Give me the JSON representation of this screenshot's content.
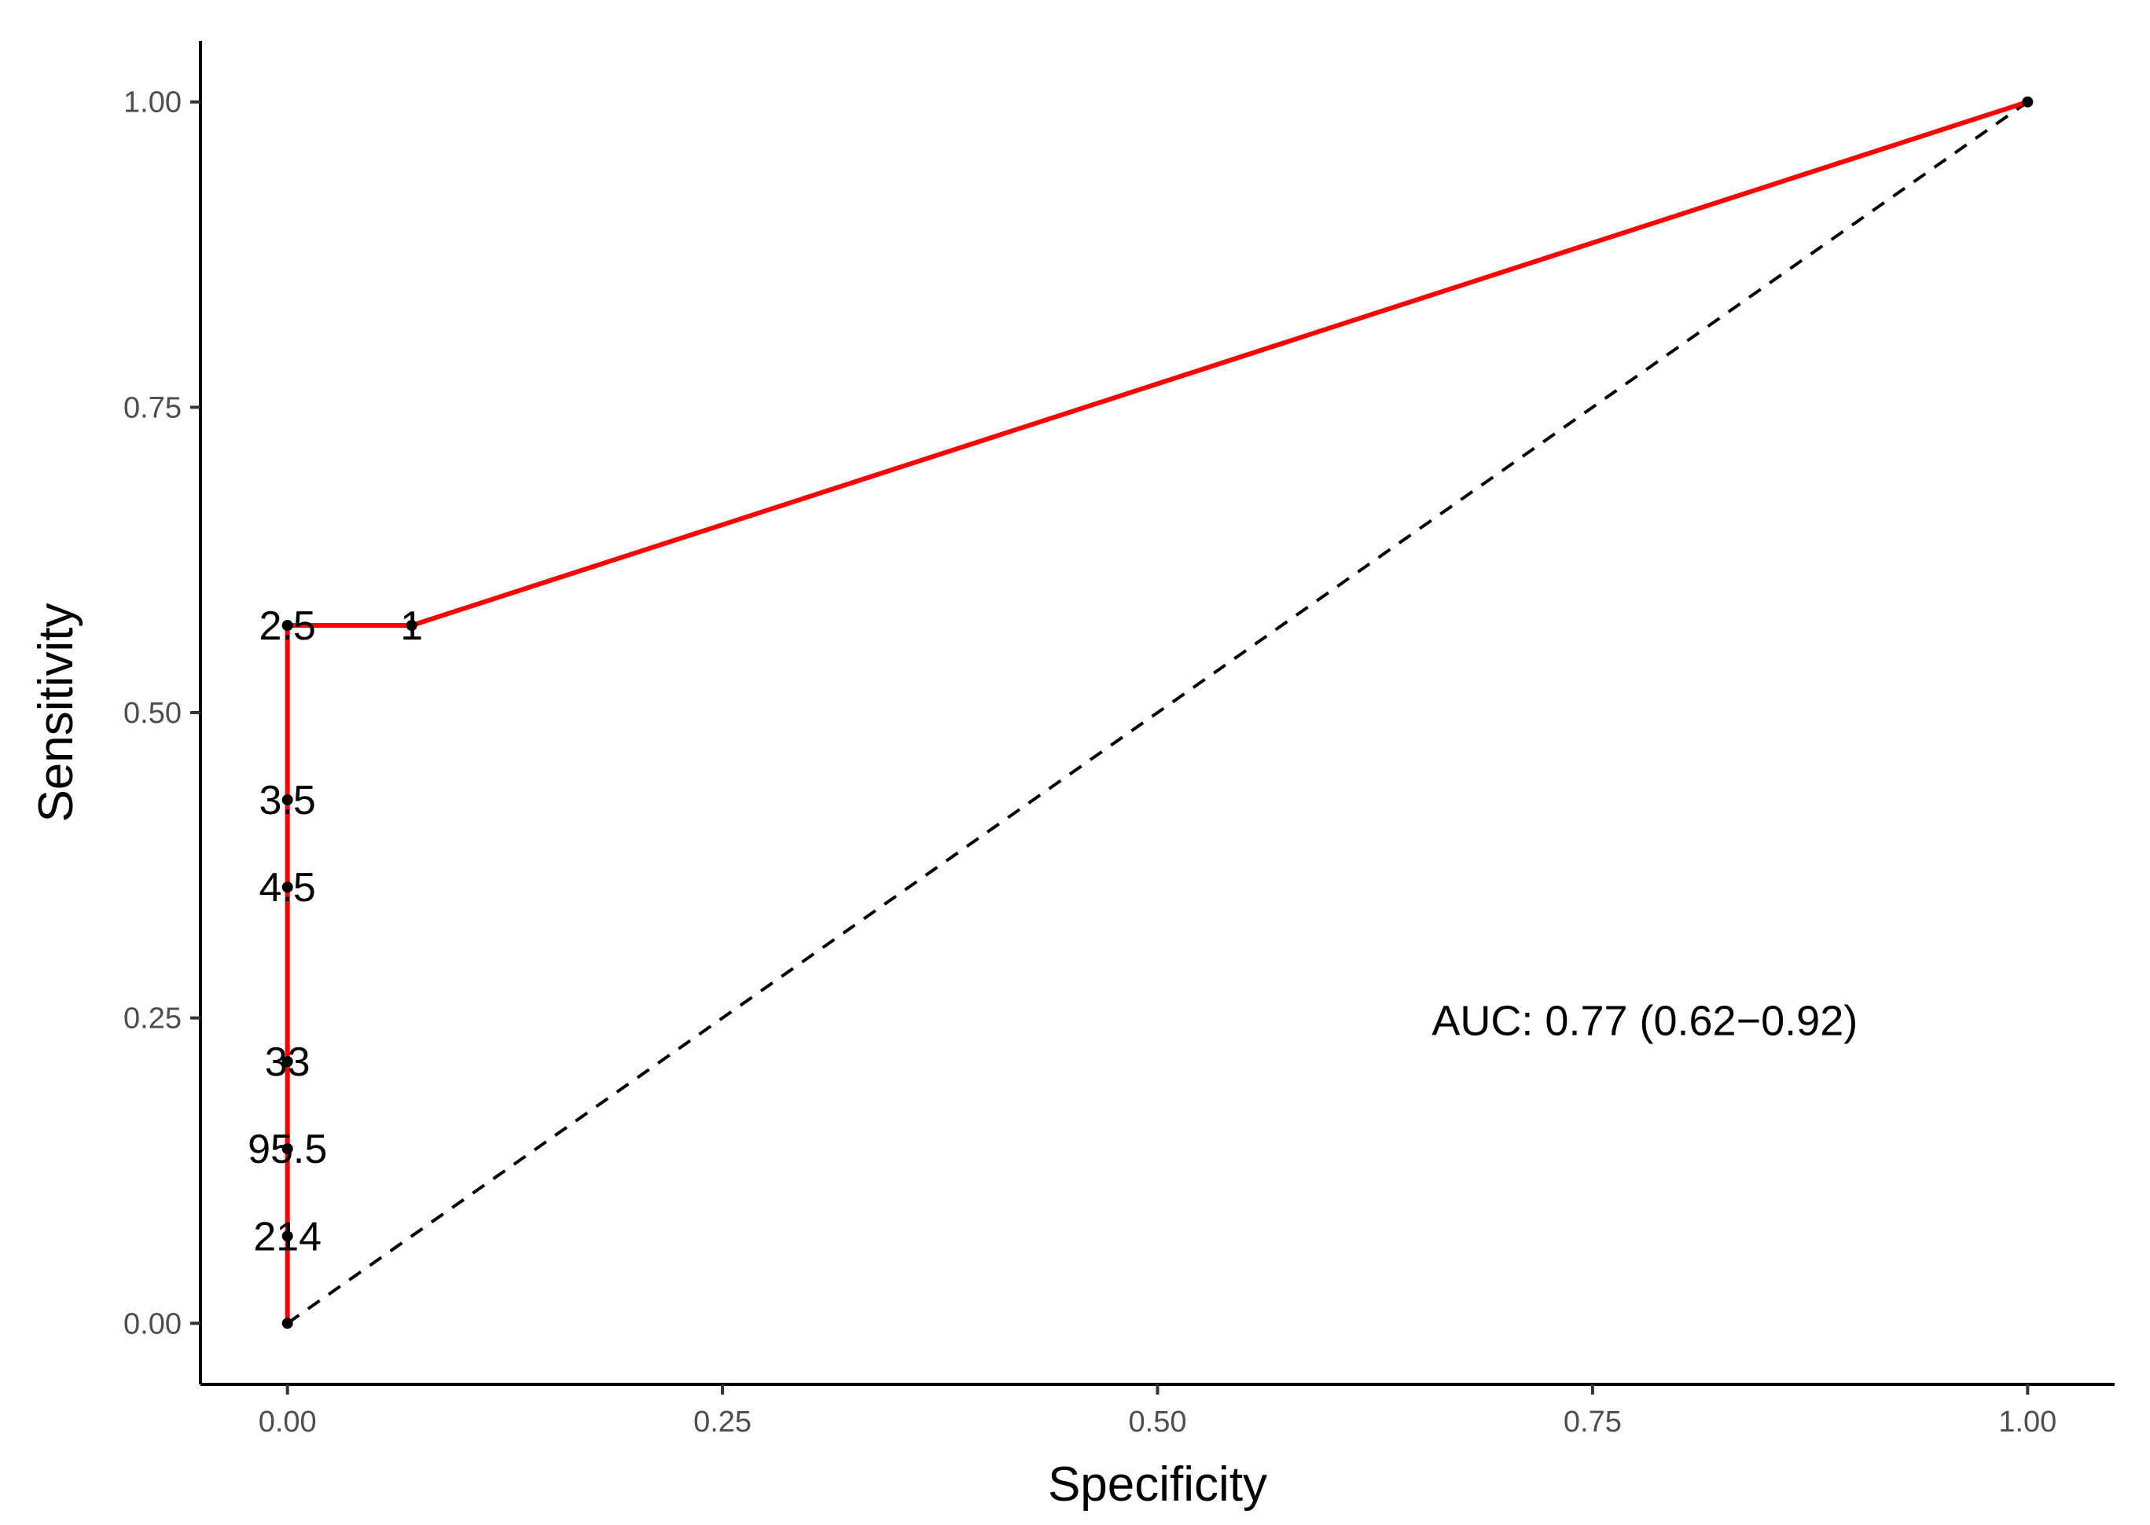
{
  "chart_data": {
    "type": "line",
    "title": "",
    "xlabel": "Specificity",
    "ylabel": "Sensitivity",
    "xlim": [
      -0.05,
      1.05
    ],
    "ylim": [
      -0.05,
      1.05
    ],
    "x_ticks": [
      0,
      0.25,
      0.5,
      0.75,
      1
    ],
    "x_tick_labels": [
      "0.00",
      "0.25",
      "0.50",
      "0.75",
      "1.00"
    ],
    "y_ticks": [
      0,
      0.25,
      0.5,
      0.75,
      1
    ],
    "y_tick_labels": [
      "0.00",
      "0.25",
      "0.50",
      "0.75",
      "1.00"
    ],
    "grid": false,
    "series": [
      {
        "color": "#ff0000",
        "points": [
          {
            "x": 0.0,
            "y": 0.0,
            "label": ""
          },
          {
            "x": 0.0,
            "y": 0.0714,
            "label": "214"
          },
          {
            "x": 0.0,
            "y": 0.1429,
            "label": "95.5"
          },
          {
            "x": 0.0,
            "y": 0.2143,
            "label": "33"
          },
          {
            "x": 0.0,
            "y": 0.3571,
            "label": "4.5"
          },
          {
            "x": 0.0,
            "y": 0.4286,
            "label": "3.5"
          },
          {
            "x": 0.0,
            "y": 0.5714,
            "label": "2.5"
          },
          {
            "x": 0.0714,
            "y": 0.5714,
            "label": "1"
          },
          {
            "x": 1.0,
            "y": 1.0,
            "label": ""
          }
        ]
      }
    ],
    "reference_line": {
      "from": [
        0,
        0
      ],
      "to": [
        1,
        1
      ],
      "style": "dashed",
      "color": "#000000"
    },
    "annotation": {
      "text": "AUC: 0.77 (0.62−0.92)",
      "x": 0.78,
      "y": 0.245
    }
  }
}
